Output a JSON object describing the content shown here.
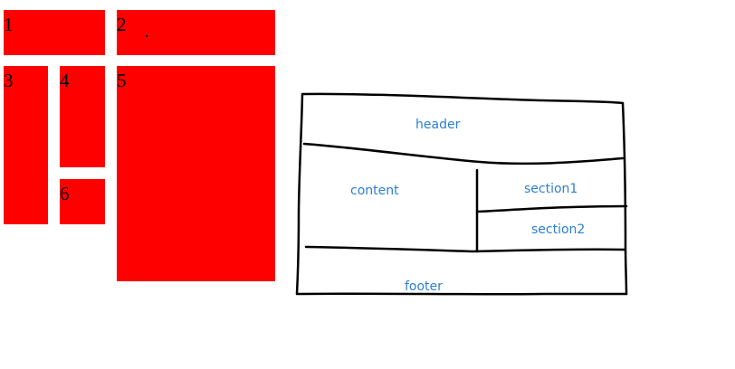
{
  "colors": {
    "box_fill": "#ff0000",
    "number_text": "#000000",
    "sketch_line": "#000000",
    "label_text": "#2b7fd4"
  },
  "grid": {
    "boxes": [
      {
        "number": "1"
      },
      {
        "number": "2"
      },
      {
        "number": "3"
      },
      {
        "number": "4"
      },
      {
        "number": "5"
      },
      {
        "number": "6"
      }
    ]
  },
  "sketch": {
    "labels": {
      "header": "header",
      "content": "content",
      "section1": "section1",
      "section2": "section2",
      "footer": "footer"
    }
  }
}
